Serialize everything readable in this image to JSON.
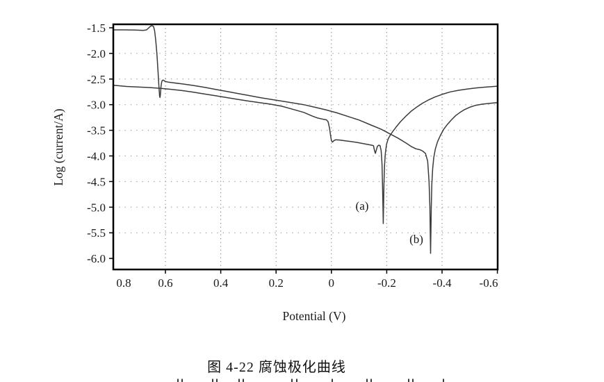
{
  "figure": {
    "caption": "图 4-22 腐蚀极化曲线",
    "xlabel": "Potential (V)",
    "ylabel": "Log (current/A)"
  },
  "colors": {
    "curve": "#3a3a3a",
    "axis": "#000000",
    "grid_vertical": "#777777",
    "grid_horizontal": "#8a8a8a",
    "text": "#1a1a1a"
  },
  "chart_data": {
    "type": "line",
    "title": "图 4-22 腐蚀极化曲线",
    "xlabel": "Potential (V)",
    "ylabel": "Log (current/A)",
    "x_axis": {
      "unit": "V",
      "reversed": true,
      "range_left_to_right": [
        0.79,
        -0.6
      ],
      "tick_values": [
        0.8,
        0.6,
        0.4,
        0.2,
        0,
        -0.2,
        -0.4,
        -0.6
      ],
      "tick_labels": [
        "0.8",
        "0.6",
        "0.4",
        "0.2",
        "0",
        "-0.2",
        "-0.4",
        "-0.6"
      ]
    },
    "y_axis": {
      "range": [
        -6.2,
        -1.43
      ],
      "tick_values": [
        -1.5,
        -2.0,
        -2.5,
        -3.0,
        -3.5,
        -4.0,
        -4.5,
        -5.0,
        -5.5,
        -6.0
      ],
      "tick_labels": [
        "-1.5",
        "-2.0",
        "-2.5",
        "-3.0",
        "-3.5",
        "-4.0",
        "-4.5",
        "-5.0",
        "-5.5",
        "-6.0"
      ]
    },
    "grid": {
      "style": "dotted",
      "vertical_at": [
        0.6,
        0.4,
        0.2,
        0,
        -0.2,
        -0.4
      ],
      "horizontal_at": [
        -2.0,
        -2.5,
        -3.0,
        -3.5,
        -4.0,
        -4.5,
        -5.0,
        -5.5
      ]
    },
    "legend_position": "none",
    "annotations": [
      {
        "text": "(a)",
        "x_V": -0.111,
        "y_log": -4.97
      },
      {
        "text": "(b)",
        "x_V": -0.307,
        "y_log": -5.62
      }
    ],
    "series": [
      {
        "name": "a",
        "label": "(a)",
        "corrosion_potential_V": -0.19,
        "points": [
          [
            0.788,
            -2.62
          ],
          [
            0.74,
            -2.645
          ],
          [
            0.7,
            -2.655
          ],
          [
            0.66,
            -2.665
          ],
          [
            0.62,
            -2.68
          ],
          [
            0.58,
            -2.7
          ],
          [
            0.54,
            -2.725
          ],
          [
            0.5,
            -2.755
          ],
          [
            0.46,
            -2.79
          ],
          [
            0.42,
            -2.825
          ],
          [
            0.38,
            -2.86
          ],
          [
            0.34,
            -2.895
          ],
          [
            0.3,
            -2.93
          ],
          [
            0.26,
            -2.96
          ],
          [
            0.22,
            -2.99
          ],
          [
            0.18,
            -3.03
          ],
          [
            0.14,
            -3.09
          ],
          [
            0.1,
            -3.15
          ],
          [
            0.07,
            -3.22
          ],
          [
            0.05,
            -3.26
          ],
          [
            0.03,
            -3.285
          ],
          [
            0.018,
            -3.295
          ],
          [
            0.012,
            -3.33
          ],
          [
            0.007,
            -3.45
          ],
          [
            0.003,
            -3.6
          ],
          [
            0.0,
            -3.7
          ],
          [
            -0.004,
            -3.73
          ],
          [
            -0.009,
            -3.7
          ],
          [
            -0.015,
            -3.685
          ],
          [
            -0.03,
            -3.69
          ],
          [
            -0.05,
            -3.705
          ],
          [
            -0.07,
            -3.72
          ],
          [
            -0.09,
            -3.735
          ],
          [
            -0.11,
            -3.755
          ],
          [
            -0.13,
            -3.775
          ],
          [
            -0.145,
            -3.79
          ],
          [
            -0.152,
            -3.8
          ],
          [
            -0.156,
            -3.9
          ],
          [
            -0.159,
            -3.95
          ],
          [
            -0.162,
            -3.89
          ],
          [
            -0.166,
            -3.815
          ],
          [
            -0.171,
            -3.79
          ],
          [
            -0.176,
            -3.8
          ],
          [
            -0.18,
            -3.9
          ],
          [
            -0.183,
            -4.15
          ],
          [
            -0.185,
            -4.6
          ],
          [
            -0.1865,
            -5.0
          ],
          [
            -0.1875,
            -5.32
          ],
          [
            -0.1885,
            -5.0
          ],
          [
            -0.19,
            -4.55
          ],
          [
            -0.192,
            -4.2
          ],
          [
            -0.195,
            -3.95
          ],
          [
            -0.199,
            -3.78
          ],
          [
            -0.205,
            -3.67
          ],
          [
            -0.212,
            -3.6
          ],
          [
            -0.222,
            -3.52
          ],
          [
            -0.235,
            -3.43
          ],
          [
            -0.25,
            -3.33
          ],
          [
            -0.27,
            -3.22
          ],
          [
            -0.29,
            -3.12
          ],
          [
            -0.31,
            -3.04
          ],
          [
            -0.33,
            -2.97
          ],
          [
            -0.35,
            -2.91
          ],
          [
            -0.375,
            -2.85
          ],
          [
            -0.4,
            -2.8
          ],
          [
            -0.43,
            -2.75
          ],
          [
            -0.46,
            -2.72
          ],
          [
            -0.49,
            -2.695
          ],
          [
            -0.52,
            -2.675
          ],
          [
            -0.55,
            -2.66
          ],
          [
            -0.575,
            -2.65
          ],
          [
            -0.6,
            -2.64
          ]
        ]
      },
      {
        "name": "b",
        "label": "(b)",
        "corrosion_potential_V": -0.36,
        "points": [
          [
            0.788,
            -1.54
          ],
          [
            0.75,
            -1.54
          ],
          [
            0.71,
            -1.545
          ],
          [
            0.68,
            -1.55
          ],
          [
            0.668,
            -1.54
          ],
          [
            0.66,
            -1.5
          ],
          [
            0.653,
            -1.465
          ],
          [
            0.648,
            -1.46
          ],
          [
            0.643,
            -1.475
          ],
          [
            0.639,
            -1.56
          ],
          [
            0.635,
            -1.75
          ],
          [
            0.631,
            -2.0
          ],
          [
            0.628,
            -2.25
          ],
          [
            0.625,
            -2.5
          ],
          [
            0.6225,
            -2.72
          ],
          [
            0.621,
            -2.83
          ],
          [
            0.6195,
            -2.86
          ],
          [
            0.618,
            -2.8
          ],
          [
            0.616,
            -2.65
          ],
          [
            0.6135,
            -2.56
          ],
          [
            0.611,
            -2.525
          ],
          [
            0.607,
            -2.52
          ],
          [
            0.602,
            -2.545
          ],
          [
            0.59,
            -2.56
          ],
          [
            0.57,
            -2.575
          ],
          [
            0.54,
            -2.595
          ],
          [
            0.5,
            -2.625
          ],
          [
            0.46,
            -2.66
          ],
          [
            0.42,
            -2.7
          ],
          [
            0.38,
            -2.74
          ],
          [
            0.34,
            -2.78
          ],
          [
            0.3,
            -2.82
          ],
          [
            0.26,
            -2.86
          ],
          [
            0.22,
            -2.895
          ],
          [
            0.18,
            -2.93
          ],
          [
            0.14,
            -2.965
          ],
          [
            0.1,
            -3.0
          ],
          [
            0.06,
            -3.05
          ],
          [
            0.02,
            -3.1
          ],
          [
            -0.02,
            -3.16
          ],
          [
            -0.06,
            -3.23
          ],
          [
            -0.1,
            -3.3
          ],
          [
            -0.14,
            -3.39
          ],
          [
            -0.18,
            -3.48
          ],
          [
            -0.21,
            -3.565
          ],
          [
            -0.24,
            -3.65
          ],
          [
            -0.27,
            -3.75
          ],
          [
            -0.29,
            -3.82
          ],
          [
            -0.305,
            -3.86
          ],
          [
            -0.32,
            -3.88
          ],
          [
            -0.33,
            -3.905
          ],
          [
            -0.34,
            -3.95
          ],
          [
            -0.348,
            -4.1
          ],
          [
            -0.353,
            -4.5
          ],
          [
            -0.356,
            -5.0
          ],
          [
            -0.3575,
            -5.55
          ],
          [
            -0.3585,
            -5.9
          ],
          [
            -0.3595,
            -5.55
          ],
          [
            -0.361,
            -5.0
          ],
          [
            -0.363,
            -4.55
          ],
          [
            -0.366,
            -4.25
          ],
          [
            -0.37,
            -4.03
          ],
          [
            -0.376,
            -3.86
          ],
          [
            -0.384,
            -3.72
          ],
          [
            -0.394,
            -3.6
          ],
          [
            -0.406,
            -3.48
          ],
          [
            -0.42,
            -3.38
          ],
          [
            -0.435,
            -3.29
          ],
          [
            -0.45,
            -3.21
          ],
          [
            -0.465,
            -3.15
          ],
          [
            -0.48,
            -3.1
          ],
          [
            -0.5,
            -3.05
          ],
          [
            -0.52,
            -3.015
          ],
          [
            -0.545,
            -2.99
          ],
          [
            -0.57,
            -2.975
          ],
          [
            -0.6,
            -2.96
          ]
        ]
      }
    ],
    "cutoff_text_marks_x": [
      256,
      262,
      306,
      312,
      344,
      350,
      420,
      427,
      478,
      528,
      534,
      588,
      594,
      638
    ]
  }
}
